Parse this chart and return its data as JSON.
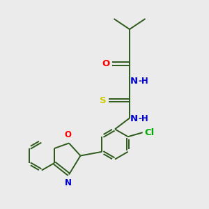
{
  "background_color": "#ebebeb",
  "bond_color": "#2d5a1b",
  "atom_colors": {
    "O": "#ff0000",
    "N": "#0000cc",
    "S": "#cccc00",
    "Cl": "#00aa00",
    "H": "#0000cc",
    "C": "#2d5a1b"
  },
  "font_size": 8.5,
  "lw": 1.4,
  "figsize": [
    3.0,
    3.0
  ],
  "dpi": 100,
  "xlim": [
    0,
    10
  ],
  "ylim": [
    0,
    10
  ]
}
